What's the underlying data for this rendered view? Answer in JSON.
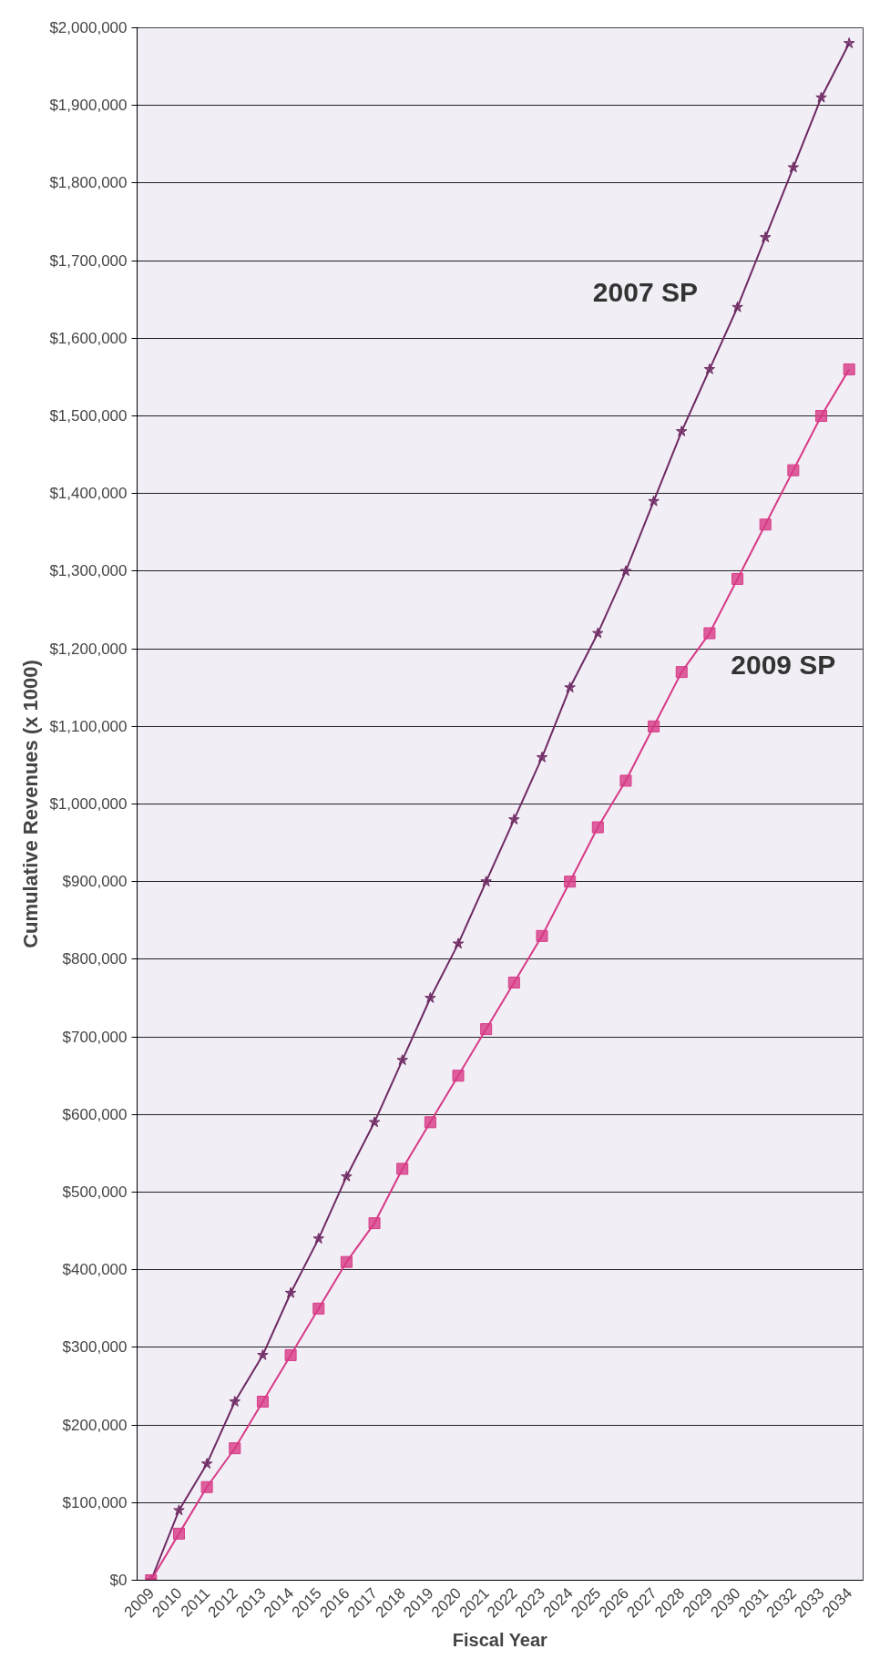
{
  "chart_data": {
    "type": "line",
    "xlabel": "Fiscal Year",
    "ylabel": "Cumulative Revenues (x 1000)",
    "categories": [
      "2009",
      "2010",
      "2011",
      "2012",
      "2013",
      "2014",
      "2015",
      "2016",
      "2017",
      "2018",
      "2019",
      "2020",
      "2021",
      "2022",
      "2023",
      "2024",
      "2025",
      "2026",
      "2027",
      "2028",
      "2029",
      "2030",
      "2031",
      "2032",
      "2033",
      "2034"
    ],
    "ylim": [
      0,
      2000000
    ],
    "yticks": [
      {
        "value": 0,
        "label": "$0"
      },
      {
        "value": 100000,
        "label": "$100,000"
      },
      {
        "value": 200000,
        "label": "$200,000"
      },
      {
        "value": 300000,
        "label": "$300,000"
      },
      {
        "value": 400000,
        "label": "$400,000"
      },
      {
        "value": 500000,
        "label": "$500,000"
      },
      {
        "value": 600000,
        "label": "$600,000"
      },
      {
        "value": 700000,
        "label": "$700,000"
      },
      {
        "value": 800000,
        "label": "$800,000"
      },
      {
        "value": 900000,
        "label": "$900,000"
      },
      {
        "value": 1000000,
        "label": "$1,000,000"
      },
      {
        "value": 1100000,
        "label": "$1,100,000"
      },
      {
        "value": 1200000,
        "label": "$1,200,000"
      },
      {
        "value": 1300000,
        "label": "$1,300,000"
      },
      {
        "value": 1400000,
        "label": "$1,400,000"
      },
      {
        "value": 1500000,
        "label": "$1,500,000"
      },
      {
        "value": 1600000,
        "label": "$1,600,000"
      },
      {
        "value": 1700000,
        "label": "$1,700,000"
      },
      {
        "value": 1800000,
        "label": "$1,800,000"
      },
      {
        "value": 1900000,
        "label": "$1,900,000"
      },
      {
        "value": 2000000,
        "label": "$2,000,000"
      }
    ],
    "grid": "y",
    "series": [
      {
        "name": "2007 SP",
        "color": "#6e2a63",
        "marker": "star",
        "values": [
          0,
          90000,
          150000,
          230000,
          290000,
          370000,
          440000,
          520000,
          590000,
          670000,
          750000,
          820000,
          900000,
          980000,
          1060000,
          1150000,
          1220000,
          1300000,
          1390000,
          1480000,
          1560000,
          1640000,
          1730000,
          1820000,
          1910000,
          1980000
        ]
      },
      {
        "name": "2009 SP",
        "color": "#d83a86",
        "marker": "square",
        "values": [
          0,
          60000,
          120000,
          170000,
          230000,
          290000,
          350000,
          410000,
          460000,
          530000,
          590000,
          650000,
          710000,
          770000,
          830000,
          900000,
          970000,
          1030000,
          1100000,
          1170000,
          1220000,
          1290000,
          1360000,
          1430000,
          1500000,
          1560000
        ]
      }
    ]
  }
}
